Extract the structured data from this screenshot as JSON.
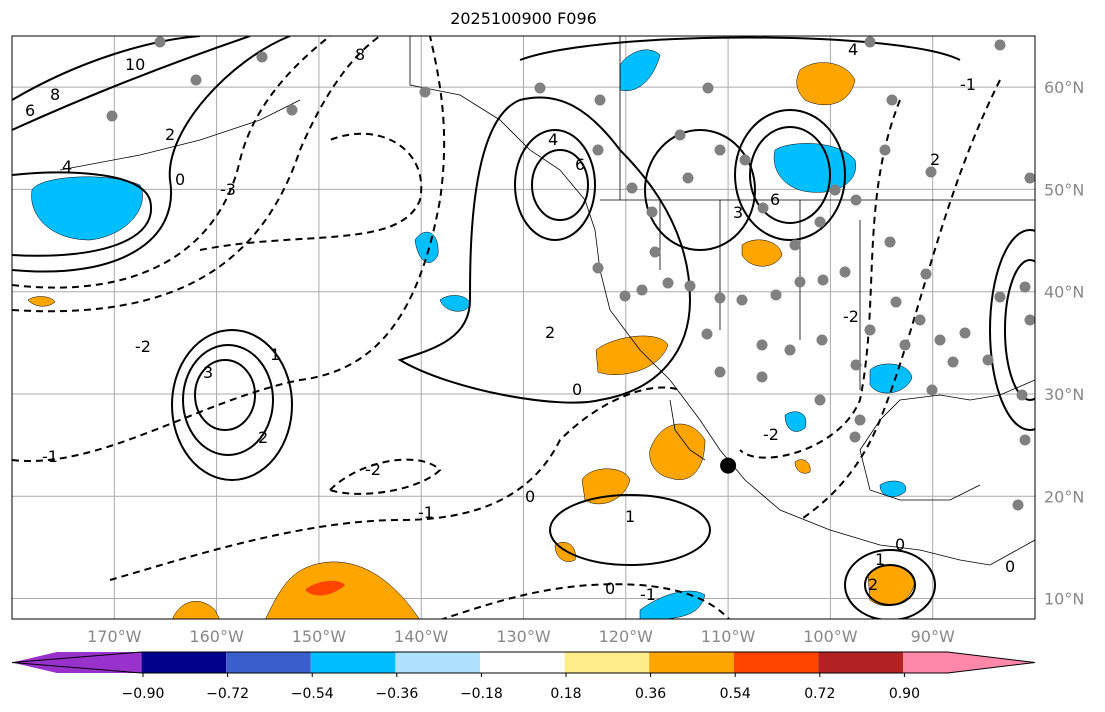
{
  "title": "2025100900 F096",
  "map": {
    "lon_range": [
      -180,
      -80
    ],
    "lat_range": [
      8,
      65
    ],
    "lon_ticks": [
      {
        "value": -170,
        "label": "170°W"
      },
      {
        "value": -160,
        "label": "160°W"
      },
      {
        "value": -150,
        "label": "150°W"
      },
      {
        "value": -140,
        "label": "140°W"
      },
      {
        "value": -130,
        "label": "130°W"
      },
      {
        "value": -120,
        "label": "120°W"
      },
      {
        "value": -110,
        "label": "110°W"
      },
      {
        "value": -100,
        "label": "100°W"
      },
      {
        "value": -90,
        "label": "90°W"
      }
    ],
    "lat_ticks": [
      {
        "value": 60,
        "label": "60°N"
      },
      {
        "value": 50,
        "label": "50°N"
      },
      {
        "value": 40,
        "label": "40°N"
      },
      {
        "value": 30,
        "label": "30°N"
      },
      {
        "value": 20,
        "label": "20°N"
      },
      {
        "value": 10,
        "label": "10°N"
      }
    ],
    "marker": {
      "lon": -110,
      "lat": 23
    }
  },
  "contour_labels": [
    "10",
    "8",
    "6",
    "4",
    "2",
    "0",
    "-1",
    "-2",
    "-3",
    "4",
    "6",
    "8",
    "2",
    "0",
    "1",
    "2",
    "3",
    "-1",
    "-2",
    "0",
    "1",
    "0",
    "1",
    "2",
    "0",
    "-1",
    "-2",
    "3",
    "4",
    "6",
    "2",
    "-2",
    "-1",
    "0"
  ],
  "colorbar": {
    "colors": [
      "#9932cc",
      "#00008b",
      "#3a5fcd",
      "#00bfff",
      "#b0e2ff",
      "#ffffff",
      "#ffec8b",
      "#ffa500",
      "#ff4500",
      "#b22222",
      "#ff88aa"
    ],
    "tick_labels": [
      "−0.90",
      "−0.72",
      "−0.54",
      "−0.36",
      "−0.18",
      "0.18",
      "0.36",
      "0.54",
      "0.72",
      "0.90"
    ]
  }
}
